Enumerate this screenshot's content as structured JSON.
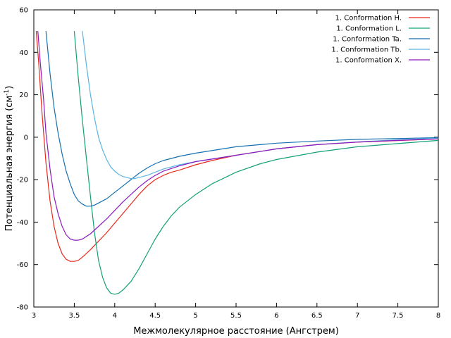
{
  "chart_data": {
    "type": "line",
    "xlabel": "Межмолекулярное расстояние (Ангстрем)",
    "ylabel": "Потенциальная энергия (см",
    "ylabel_sup": "-1",
    "ylabel_close": ")",
    "xlim": [
      3,
      8
    ],
    "ylim": [
      -80,
      60
    ],
    "xticks": [
      3,
      3.5,
      4,
      4.5,
      5,
      5.5,
      6,
      6.5,
      7,
      7.5,
      8
    ],
    "xtick_labels": [
      "3",
      "3.5",
      "4",
      "4.5",
      "5",
      "5.5",
      "6",
      "6.5",
      "7",
      "7.5",
      "8"
    ],
    "yticks": [
      -80,
      -60,
      -40,
      -20,
      0,
      20,
      40,
      60
    ],
    "ytick_labels": [
      "-80",
      "-60",
      "-40",
      "-20",
      "0",
      "20",
      "40",
      "60"
    ],
    "grid": false,
    "legend_position": "top-right",
    "series": [
      {
        "name": "1. Conformation H.",
        "color": "#e8281a",
        "points": [
          [
            3.03,
            50
          ],
          [
            3.06,
            35
          ],
          [
            3.1,
            12
          ],
          [
            3.15,
            -12
          ],
          [
            3.2,
            -30
          ],
          [
            3.25,
            -42
          ],
          [
            3.3,
            -50
          ],
          [
            3.35,
            -55
          ],
          [
            3.4,
            -57.5
          ],
          [
            3.45,
            -58.5
          ],
          [
            3.5,
            -58.5
          ],
          [
            3.55,
            -58
          ],
          [
            3.6,
            -56.5
          ],
          [
            3.7,
            -53
          ],
          [
            3.8,
            -49
          ],
          [
            3.9,
            -45
          ],
          [
            4.0,
            -40.5
          ],
          [
            4.1,
            -36
          ],
          [
            4.2,
            -31.5
          ],
          [
            4.3,
            -27
          ],
          [
            4.4,
            -23
          ],
          [
            4.5,
            -20
          ],
          [
            4.6,
            -18
          ],
          [
            4.7,
            -16.5
          ],
          [
            4.8,
            -15.5
          ],
          [
            5.0,
            -13
          ],
          [
            5.2,
            -11
          ],
          [
            5.5,
            -8.5
          ],
          [
            6.0,
            -5.5
          ],
          [
            6.5,
            -3.5
          ],
          [
            7.0,
            -2.3
          ],
          [
            7.5,
            -1.6
          ],
          [
            8.0,
            -0.8
          ]
        ]
      },
      {
        "name": "1. Conformation L.",
        "color": "#14a077",
        "points": [
          [
            3.5,
            50
          ],
          [
            3.55,
            28
          ],
          [
            3.6,
            8
          ],
          [
            3.65,
            -10
          ],
          [
            3.7,
            -28
          ],
          [
            3.75,
            -45
          ],
          [
            3.8,
            -58
          ],
          [
            3.85,
            -66
          ],
          [
            3.9,
            -71
          ],
          [
            3.95,
            -73.5
          ],
          [
            4.0,
            -74
          ],
          [
            4.05,
            -73.5
          ],
          [
            4.1,
            -72
          ],
          [
            4.2,
            -68
          ],
          [
            4.3,
            -62
          ],
          [
            4.4,
            -55
          ],
          [
            4.5,
            -48
          ],
          [
            4.6,
            -42
          ],
          [
            4.7,
            -37
          ],
          [
            4.8,
            -33
          ],
          [
            5.0,
            -27
          ],
          [
            5.2,
            -22
          ],
          [
            5.5,
            -16.5
          ],
          [
            5.8,
            -12.5
          ],
          [
            6.0,
            -10.5
          ],
          [
            6.5,
            -7
          ],
          [
            7.0,
            -4.5
          ],
          [
            7.5,
            -3
          ],
          [
            8.0,
            -1.5
          ]
        ]
      },
      {
        "name": "1. Conformation Ta.",
        "color": "#1670b0",
        "points": [
          [
            3.15,
            50
          ],
          [
            3.2,
            30
          ],
          [
            3.25,
            14
          ],
          [
            3.3,
            2
          ],
          [
            3.35,
            -8
          ],
          [
            3.4,
            -16
          ],
          [
            3.45,
            -22
          ],
          [
            3.5,
            -27
          ],
          [
            3.55,
            -30
          ],
          [
            3.6,
            -31.5
          ],
          [
            3.65,
            -32.5
          ],
          [
            3.7,
            -32.5
          ],
          [
            3.75,
            -32
          ],
          [
            3.8,
            -31
          ],
          [
            3.9,
            -29
          ],
          [
            4.0,
            -26
          ],
          [
            4.1,
            -23
          ],
          [
            4.2,
            -20
          ],
          [
            4.3,
            -17
          ],
          [
            4.4,
            -14.5
          ],
          [
            4.5,
            -12.5
          ],
          [
            4.6,
            -11
          ],
          [
            4.8,
            -9
          ],
          [
            5.0,
            -7.5
          ],
          [
            5.5,
            -4.5
          ],
          [
            6.0,
            -2.8
          ],
          [
            6.5,
            -1.8
          ],
          [
            7.0,
            -1
          ],
          [
            7.5,
            -0.6
          ],
          [
            8.0,
            -0.2
          ]
        ]
      },
      {
        "name": "1. Conformation Tb.",
        "color": "#5ab4e0",
        "points": [
          [
            3.6,
            50
          ],
          [
            3.65,
            34
          ],
          [
            3.7,
            20
          ],
          [
            3.75,
            9
          ],
          [
            3.8,
            0
          ],
          [
            3.85,
            -6
          ],
          [
            3.9,
            -10.5
          ],
          [
            3.95,
            -14
          ],
          [
            4.0,
            -16
          ],
          [
            4.05,
            -17.5
          ],
          [
            4.1,
            -18.5
          ],
          [
            4.15,
            -19
          ],
          [
            4.2,
            -19.5
          ],
          [
            4.25,
            -19.5
          ],
          [
            4.3,
            -19
          ],
          [
            4.4,
            -18
          ],
          [
            4.5,
            -16.5
          ],
          [
            4.6,
            -15
          ],
          [
            4.8,
            -13
          ],
          [
            5.0,
            -11.5
          ],
          [
            5.5,
            -8.5
          ],
          [
            6.0,
            -5.5
          ],
          [
            6.5,
            -3.5
          ],
          [
            7.0,
            -2.2
          ],
          [
            7.5,
            -1.2
          ],
          [
            8.0,
            -0.5
          ]
        ]
      },
      {
        "name": "1. Conformation X.",
        "color": "#8b1abf",
        "points": [
          [
            3.05,
            50
          ],
          [
            3.08,
            35
          ],
          [
            3.12,
            18
          ],
          [
            3.15,
            2
          ],
          [
            3.2,
            -15
          ],
          [
            3.25,
            -28
          ],
          [
            3.3,
            -36
          ],
          [
            3.35,
            -42
          ],
          [
            3.4,
            -46
          ],
          [
            3.45,
            -48
          ],
          [
            3.5,
            -48.5
          ],
          [
            3.55,
            -48.5
          ],
          [
            3.6,
            -48
          ],
          [
            3.7,
            -45.5
          ],
          [
            3.8,
            -42
          ],
          [
            3.9,
            -38.5
          ],
          [
            4.0,
            -34.5
          ],
          [
            4.1,
            -30.5
          ],
          [
            4.2,
            -27
          ],
          [
            4.3,
            -23.5
          ],
          [
            4.4,
            -20.5
          ],
          [
            4.5,
            -18
          ],
          [
            4.6,
            -16
          ],
          [
            4.8,
            -13.5
          ],
          [
            5.0,
            -11.5
          ],
          [
            5.5,
            -8.5
          ],
          [
            6.0,
            -5.5
          ],
          [
            6.5,
            -3.5
          ],
          [
            7.0,
            -2.3
          ],
          [
            7.5,
            -1.5
          ],
          [
            8.0,
            -0.8
          ]
        ]
      }
    ]
  }
}
